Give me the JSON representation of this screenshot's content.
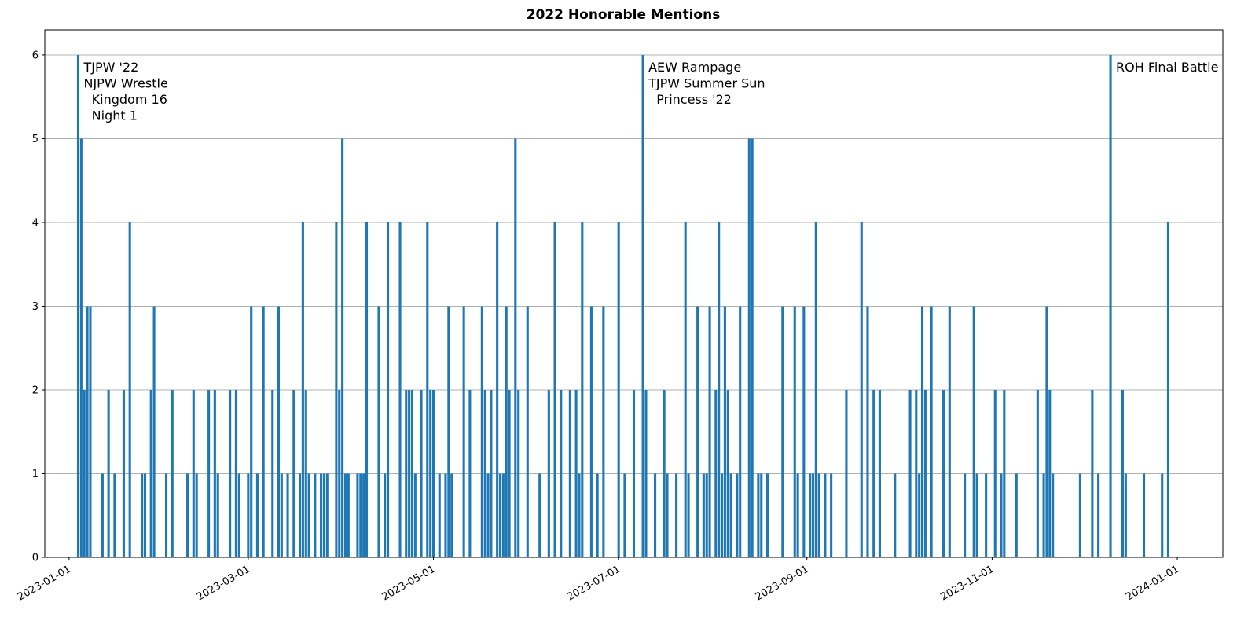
{
  "chart_data": {
    "type": "bar",
    "title": "2022 Honorable Mentions",
    "color": "#1f77b4",
    "grid": true,
    "x": [
      "2023-01-04",
      "2023-01-05",
      "2023-01-06",
      "2023-01-07",
      "2023-01-08",
      "2023-01-12",
      "2023-01-14",
      "2023-01-16",
      "2023-01-19",
      "2023-01-21",
      "2023-01-25",
      "2023-01-26",
      "2023-01-28",
      "2023-01-29",
      "2023-02-02",
      "2023-02-04",
      "2023-02-09",
      "2023-02-11",
      "2023-02-12",
      "2023-02-16",
      "2023-02-18",
      "2023-02-19",
      "2023-02-23",
      "2023-02-25",
      "2023-02-26",
      "2023-03-01",
      "2023-03-02",
      "2023-03-04",
      "2023-03-06",
      "2023-03-09",
      "2023-03-11",
      "2023-03-12",
      "2023-03-14",
      "2023-03-16",
      "2023-03-18",
      "2023-03-19",
      "2023-03-20",
      "2023-03-21",
      "2023-03-23",
      "2023-03-25",
      "2023-03-26",
      "2023-03-27",
      "2023-03-30",
      "2023-03-31",
      "2023-04-01",
      "2023-04-02",
      "2023-04-03",
      "2023-04-06",
      "2023-04-07",
      "2023-04-08",
      "2023-04-09",
      "2023-04-13",
      "2023-04-15",
      "2023-04-16",
      "2023-04-20",
      "2023-04-22",
      "2023-04-23",
      "2023-04-24",
      "2023-04-25",
      "2023-04-27",
      "2023-04-29",
      "2023-04-30",
      "2023-05-01",
      "2023-05-03",
      "2023-05-05",
      "2023-05-06",
      "2023-05-07",
      "2023-05-11",
      "2023-05-13",
      "2023-05-17",
      "2023-05-18",
      "2023-05-19",
      "2023-05-20",
      "2023-05-22",
      "2023-05-23",
      "2023-05-24",
      "2023-05-25",
      "2023-05-26",
      "2023-05-28",
      "2023-05-29",
      "2023-06-01",
      "2023-06-05",
      "2023-06-08",
      "2023-06-10",
      "2023-06-12",
      "2023-06-15",
      "2023-06-17",
      "2023-06-18",
      "2023-06-19",
      "2023-06-22",
      "2023-06-24",
      "2023-06-26",
      "2023-07-01",
      "2023-07-03",
      "2023-07-06",
      "2023-07-09",
      "2023-07-10",
      "2023-07-13",
      "2023-07-16",
      "2023-07-17",
      "2023-07-20",
      "2023-07-23",
      "2023-07-24",
      "2023-07-27",
      "2023-07-29",
      "2023-07-30",
      "2023-07-31",
      "2023-08-02",
      "2023-08-03",
      "2023-08-04",
      "2023-08-05",
      "2023-08-06",
      "2023-08-07",
      "2023-08-09",
      "2023-08-10",
      "2023-08-13",
      "2023-08-14",
      "2023-08-16",
      "2023-08-17",
      "2023-08-19",
      "2023-08-24",
      "2023-08-28",
      "2023-08-29",
      "2023-08-31",
      "2023-09-02",
      "2023-09-03",
      "2023-09-04",
      "2023-09-05",
      "2023-09-07",
      "2023-09-09",
      "2023-09-14",
      "2023-09-19",
      "2023-09-21",
      "2023-09-23",
      "2023-09-25",
      "2023-09-30",
      "2023-10-05",
      "2023-10-07",
      "2023-10-08",
      "2023-10-09",
      "2023-10-10",
      "2023-10-12",
      "2023-10-16",
      "2023-10-18",
      "2023-10-23",
      "2023-10-26",
      "2023-10-27",
      "2023-10-30",
      "2023-11-02",
      "2023-11-04",
      "2023-11-05",
      "2023-11-09",
      "2023-11-16",
      "2023-11-18",
      "2023-11-19",
      "2023-11-20",
      "2023-11-21",
      "2023-11-30",
      "2023-12-04",
      "2023-12-06",
      "2023-12-10",
      "2023-12-14",
      "2023-12-15",
      "2023-12-21",
      "2023-12-27",
      "2023-12-29"
    ],
    "values": [
      6,
      5,
      2,
      3,
      3,
      1,
      2,
      1,
      2,
      4,
      1,
      1,
      2,
      3,
      1,
      2,
      1,
      2,
      1,
      2,
      2,
      1,
      2,
      2,
      1,
      1,
      3,
      1,
      3,
      2,
      3,
      1,
      1,
      2,
      1,
      4,
      2,
      1,
      1,
      1,
      1,
      1,
      4,
      2,
      5,
      1,
      1,
      1,
      1,
      1,
      4,
      3,
      1,
      4,
      4,
      2,
      2,
      2,
      1,
      2,
      4,
      2,
      2,
      1,
      1,
      3,
      1,
      3,
      2,
      3,
      2,
      1,
      2,
      4,
      1,
      1,
      3,
      2,
      5,
      2,
      3,
      1,
      2,
      4,
      2,
      2,
      2,
      1,
      4,
      3,
      1,
      3,
      4,
      1,
      2,
      6,
      2,
      1,
      2,
      1,
      1,
      4,
      1,
      3,
      1,
      1,
      3,
      2,
      4,
      1,
      3,
      2,
      1,
      1,
      3,
      5,
      5,
      1,
      1,
      1,
      3,
      3,
      1,
      3,
      1,
      1,
      4,
      1,
      1,
      1,
      2,
      4,
      3,
      2,
      2,
      1,
      2,
      2,
      1,
      3,
      2,
      3,
      2,
      3,
      1,
      3,
      1,
      1,
      2,
      1,
      2,
      1,
      2,
      1,
      3,
      2,
      1,
      1,
      2,
      1,
      6,
      2,
      1,
      1,
      1,
      4
    ],
    "xlim": [
      "2022-12-24",
      "2024-01-16"
    ],
    "xticks": [
      "2023-01-01",
      "2023-03-01",
      "2023-05-01",
      "2023-07-01",
      "2023-09-01",
      "2023-11-01",
      "2024-01-01"
    ],
    "ylim": [
      0,
      6.3
    ],
    "yticks": [
      0,
      1,
      2,
      3,
      4,
      5,
      6
    ],
    "annotations": [
      {
        "x": "2023-01-04",
        "y": 6,
        "text_lines": [
          "TJPW '22",
          "NJPW Wrestle",
          "  Kingdom 16",
          "  Night 1"
        ]
      },
      {
        "x": "2023-07-09",
        "y": 6,
        "text_lines": [
          "AEW Rampage",
          "TJPW Summer Sun",
          "  Princess '22"
        ]
      },
      {
        "x": "2023-12-10",
        "y": 6,
        "text_lines": [
          "ROH Final Battle"
        ]
      }
    ]
  }
}
